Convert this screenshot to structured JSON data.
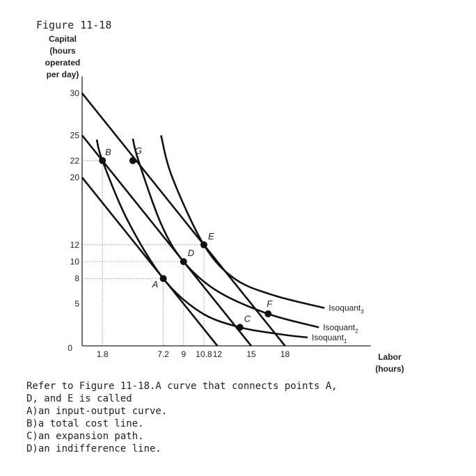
{
  "figure_title": "Figure 11-18",
  "chart_data": {
    "type": "line",
    "ylabel_lines": [
      "Capital",
      "(hours",
      "operated",
      "per day)"
    ],
    "xlabel_lines": [
      "Labor",
      "(hours)"
    ],
    "xlim": [
      0,
      25.6
    ],
    "ylim": [
      0,
      32
    ],
    "y_ticks": [
      "30",
      "25",
      "22",
      "20",
      "12",
      "10",
      "8",
      "5",
      "0"
    ],
    "x_ticks": [
      "1.8",
      "7.2",
      "9",
      "10.8",
      "12",
      "15",
      "18"
    ],
    "y_tick_values": [
      30,
      25,
      22,
      20,
      12,
      10,
      8,
      5,
      0
    ],
    "x_tick_values": [
      1.8,
      7.2,
      9,
      10.8,
      12,
      15,
      18
    ],
    "isocost_lines": [
      {
        "x_intercept": 12,
        "y_intercept": 20
      },
      {
        "x_intercept": 15,
        "y_intercept": 25
      },
      {
        "x_intercept": 18,
        "y_intercept": 30
      }
    ],
    "isoquants": [
      {
        "label": "Isoquant",
        "sub": "1",
        "points": [
          [
            1.3,
            24.5
          ],
          [
            1.8,
            22
          ],
          [
            4.0,
            15.0
          ],
          [
            7.2,
            8
          ],
          [
            10.5,
            4.0
          ],
          [
            14.0,
            2.2
          ],
          [
            18.0,
            1.3
          ],
          [
            20.0,
            1.0
          ]
        ]
      },
      {
        "label": "Isoquant",
        "sub": "2",
        "points": [
          [
            4.5,
            24.6
          ],
          [
            5.0,
            22
          ],
          [
            7.0,
            14.5
          ],
          [
            9,
            10
          ],
          [
            12.0,
            6.5
          ],
          [
            16.5,
            3.8
          ],
          [
            21.0,
            2.2
          ]
        ]
      },
      {
        "label": "Isoquant",
        "sub": "3",
        "points": [
          [
            7.0,
            25.0
          ],
          [
            8.0,
            20.0
          ],
          [
            10.8,
            12
          ],
          [
            13.5,
            8.0
          ],
          [
            17.0,
            6.0
          ],
          [
            21.5,
            4.5
          ]
        ]
      }
    ],
    "points": [
      {
        "label": "A",
        "x": 7.2,
        "y": 8
      },
      {
        "label": "B",
        "x": 1.8,
        "y": 22
      },
      {
        "label": "C",
        "x": 14.0,
        "y": 2.2
      },
      {
        "label": "D",
        "x": 9,
        "y": 10
      },
      {
        "label": "E",
        "x": 10.8,
        "y": 12
      },
      {
        "label": "F",
        "x": 16.5,
        "y": 3.8
      },
      {
        "label": "G",
        "x": 4.5,
        "y": 22
      }
    ]
  },
  "question": {
    "stem_lines": [
      "Refer to Figure 11-18.A curve that connects points A,",
      "D, and E is called"
    ],
    "options": [
      "A)an input-output curve.",
      "B)a total cost line.",
      "C)an expansion path.",
      "D)an indifference line."
    ]
  }
}
